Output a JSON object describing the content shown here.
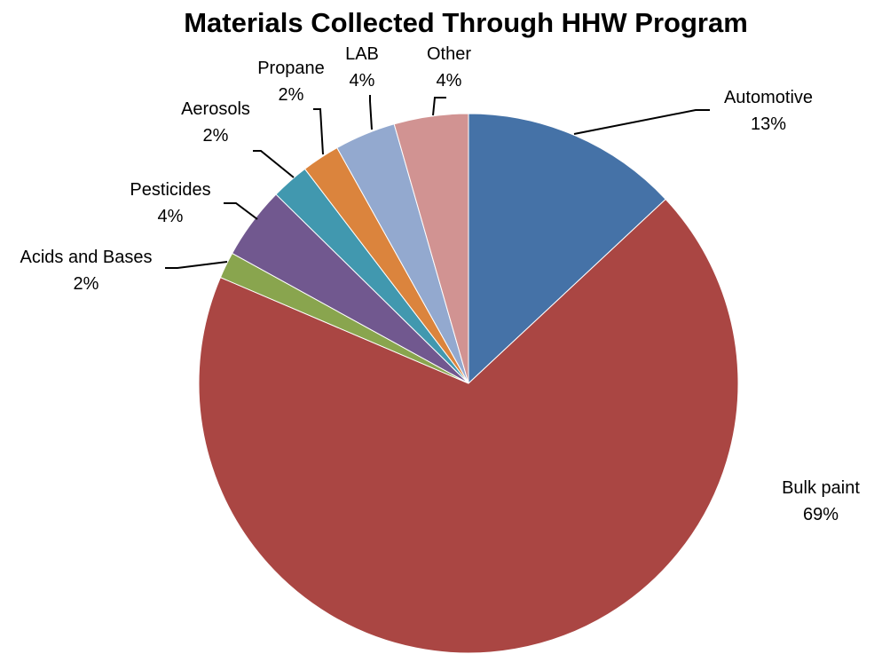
{
  "chart_data": {
    "type": "pie",
    "title": "Materials Collected Through HHW Program",
    "slices": [
      {
        "name": "Automotive",
        "value_label": "13%",
        "value": 13.2,
        "color": "#4572A7"
      },
      {
        "name": "Bulk paint",
        "value_label": "69%",
        "value": 69.2,
        "color": "#AA4643"
      },
      {
        "name": "Acids and Bases",
        "value_label": "2%",
        "value": 1.6,
        "color": "#89A54E"
      },
      {
        "name": "Pesticides",
        "value_label": "4%",
        "value": 4.4,
        "color": "#71588F"
      },
      {
        "name": "Aerosols",
        "value_label": "2%",
        "value": 2.3,
        "color": "#4198AF"
      },
      {
        "name": "Propane",
        "value_label": "2%",
        "value": 2.3,
        "color": "#DB843D"
      },
      {
        "name": "LAB",
        "value_label": "4%",
        "value": 3.7,
        "color": "#93A9CF"
      },
      {
        "name": "Other",
        "value_label": "4%",
        "value": 4.5,
        "color": "#D19392"
      }
    ],
    "start_angle_deg": 0,
    "direction": "clockwise",
    "legend": "none",
    "data_labels": "outside-with-leader-lines"
  }
}
